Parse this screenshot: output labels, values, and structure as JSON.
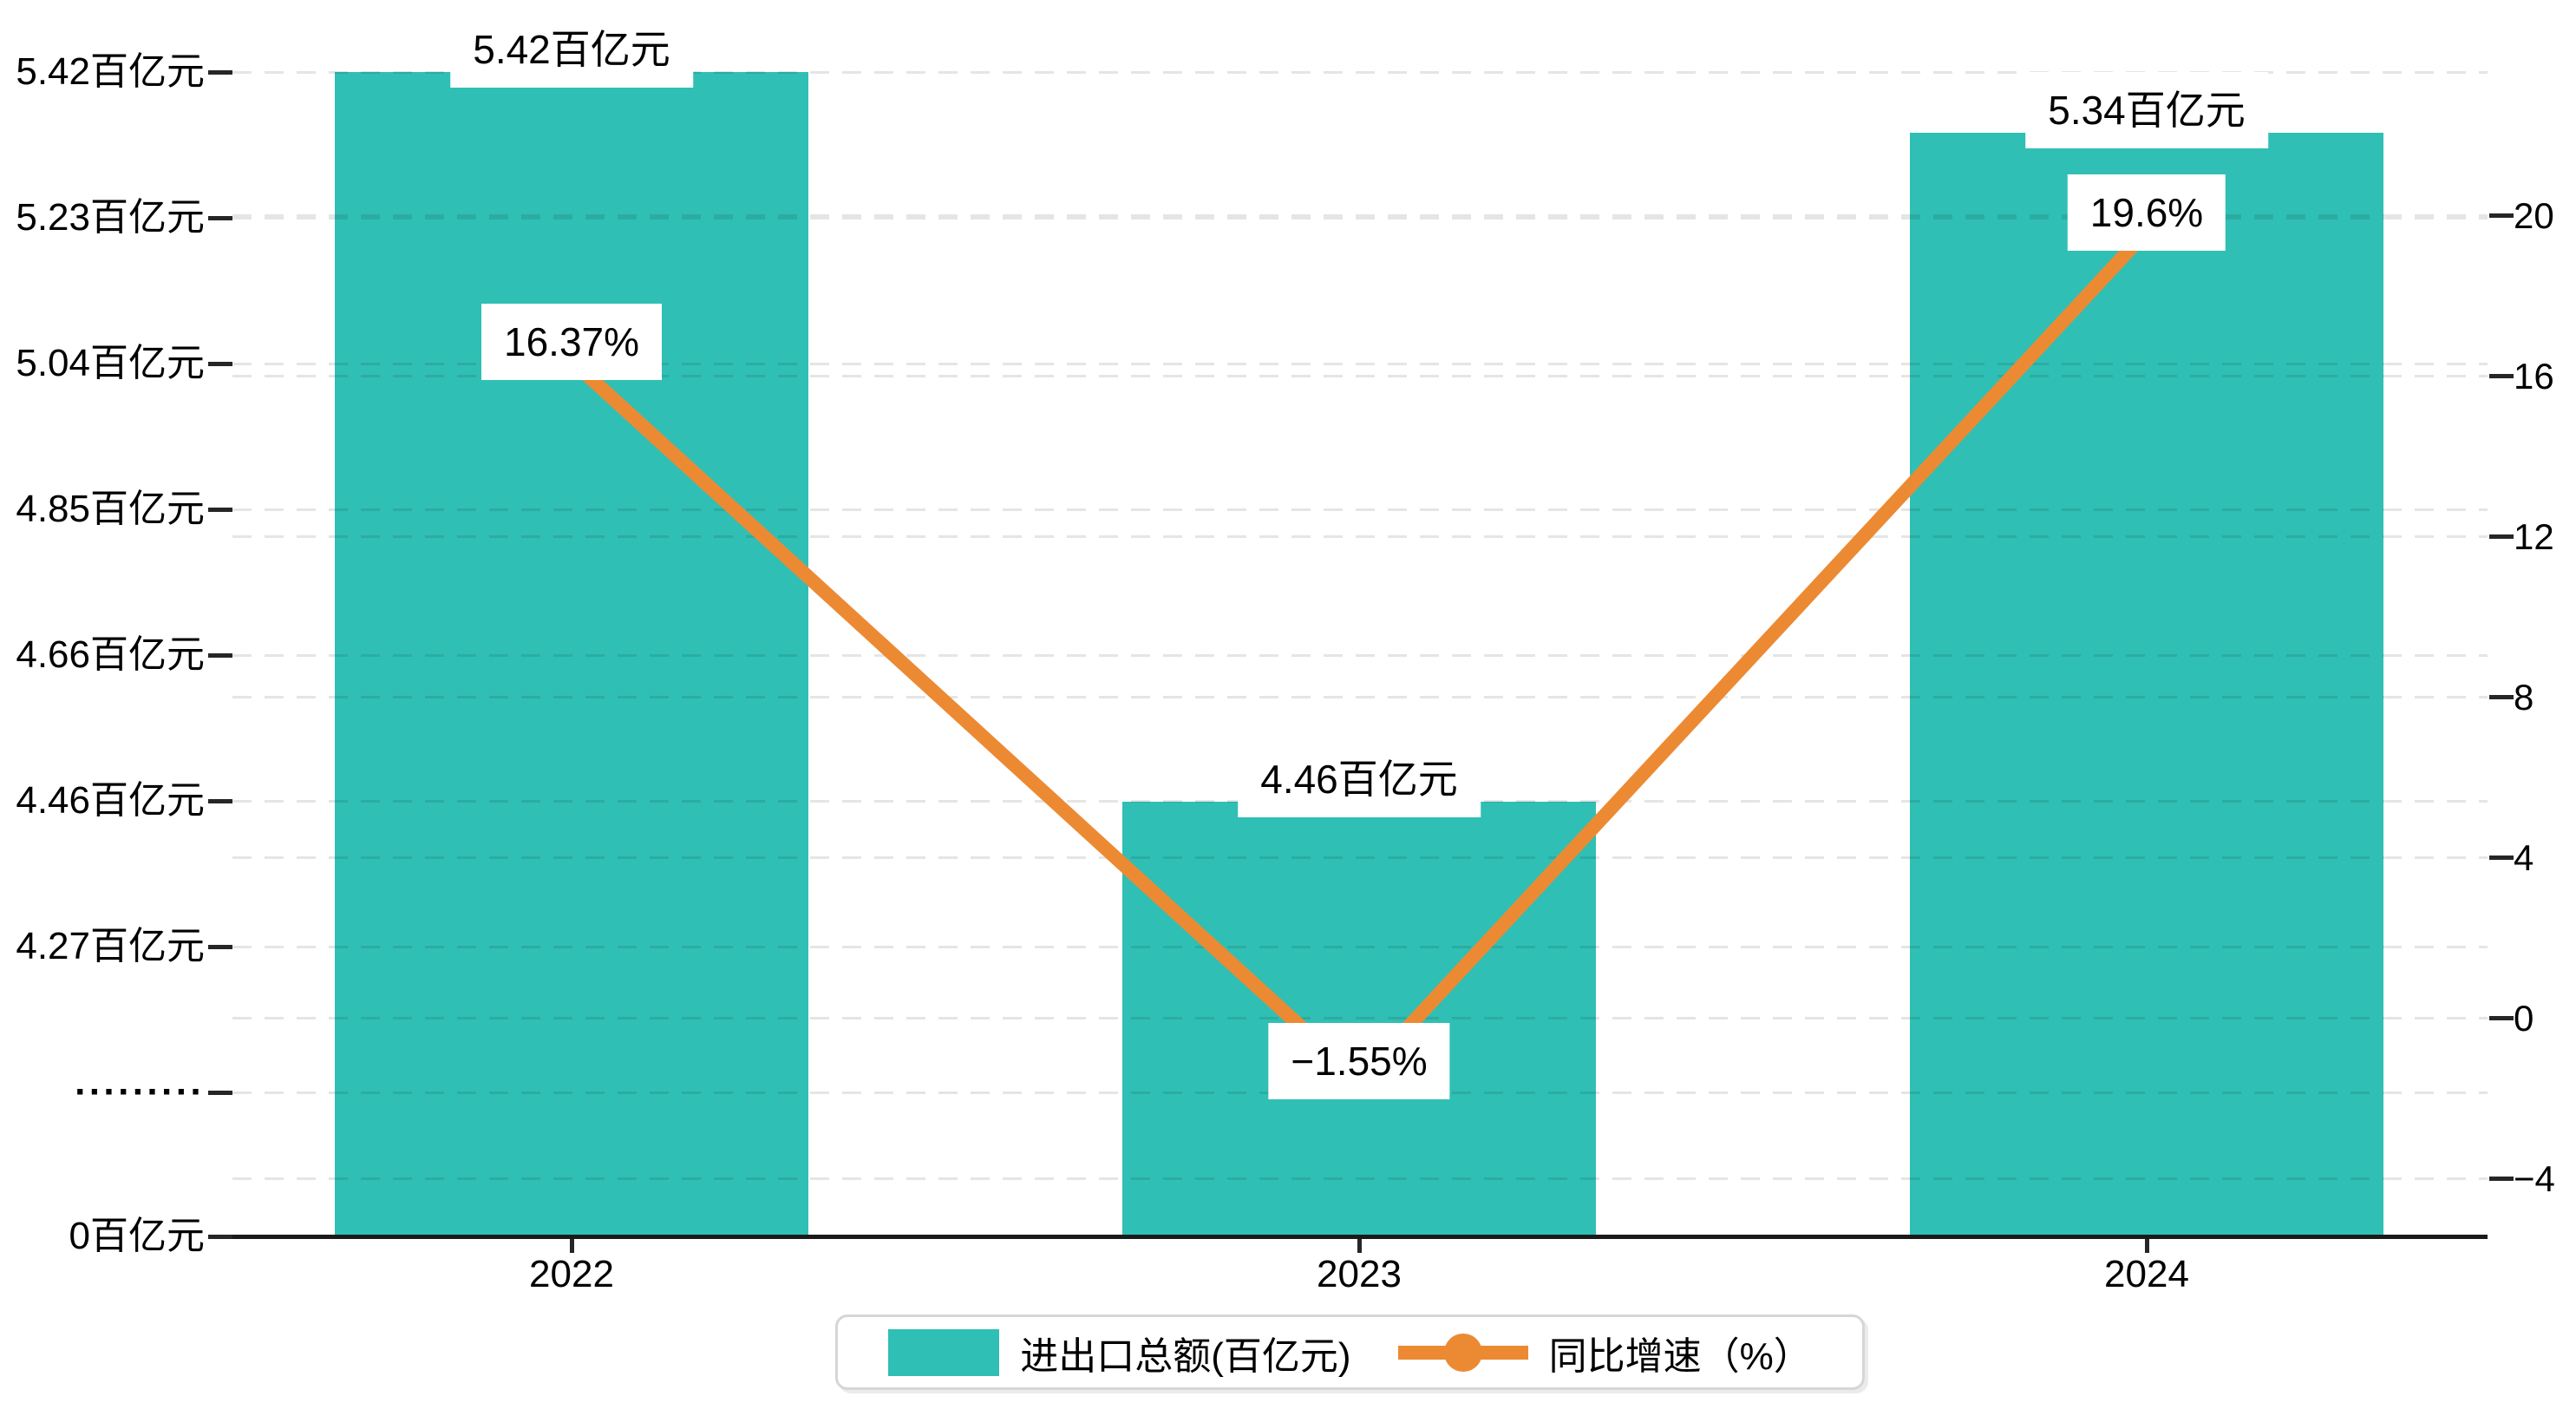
{
  "chart_data": {
    "type": "bar+line",
    "categories": [
      "2022",
      "2023",
      "2024"
    ],
    "series": [
      {
        "name": "进出口总额(百亿元)",
        "type": "bar",
        "values": [
          5.42,
          4.46,
          5.34
        ],
        "point_labels": [
          "5.42百亿元",
          "4.46百亿元",
          "5.34百亿元"
        ],
        "color": "#30bfb4"
      },
      {
        "name": "同比增速（%）",
        "type": "line",
        "values": [
          16.37,
          -1.55,
          19.6
        ],
        "point_labels": [
          "16.37%",
          "−1.55%",
          "19.6%"
        ],
        "color": "#ec8a33"
      }
    ],
    "left_axis": {
      "tick_labels": [
        "5.42百亿元",
        "5.23百亿元",
        "5.04百亿元",
        "4.85百亿元",
        "4.66百亿元",
        "4.46百亿元",
        "4.27百亿元",
        "·········",
        "0百亿元"
      ],
      "tick_values": [
        5.42,
        5.23,
        5.04,
        4.85,
        4.66,
        4.46,
        4.27,
        null,
        0
      ],
      "broken_axis": true
    },
    "right_axis": {
      "tick_labels": [
        "20",
        "16",
        "12",
        "8",
        "4",
        "0",
        "−4"
      ],
      "tick_values": [
        20,
        16,
        12,
        8,
        4,
        0,
        -4
      ]
    },
    "grid": "dashed",
    "legend_position": "bottom-center"
  },
  "legend": {
    "bar_label": "进出口总额(百亿元)",
    "line_label": "同比增速（%）"
  },
  "colors": {
    "bar": "#30bfb4",
    "line": "#ec8a33",
    "grid": "rgba(0,0,0,0.10)",
    "axis": "#1a1a1a",
    "annotation_bg": "#ffffff",
    "annotation_text": "#000000",
    "legend_border": "#d6d6d6"
  }
}
